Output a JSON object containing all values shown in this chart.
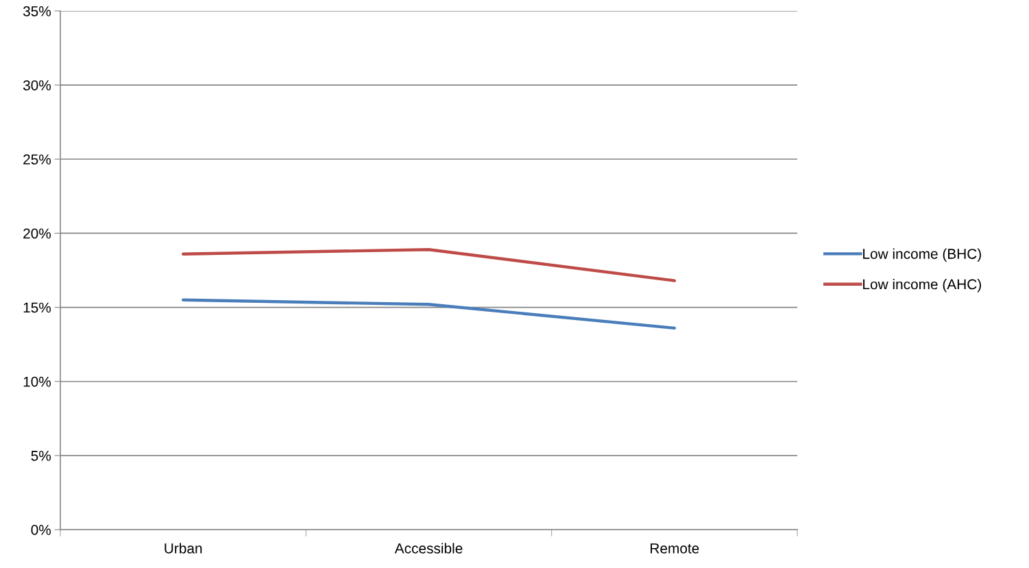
{
  "chart_data": {
    "type": "line",
    "categories": [
      "Urban",
      "Accessible",
      "Remote"
    ],
    "series": [
      {
        "name": "Low income (BHC)",
        "color": "#4a7ebb",
        "values": [
          15.5,
          15.2,
          13.6
        ]
      },
      {
        "name": "Low income (AHC)",
        "color": "#be4b48",
        "values": [
          18.6,
          18.9,
          16.8
        ]
      }
    ],
    "ylim": [
      0,
      35
    ],
    "yticks": [
      {
        "value": 0,
        "label": "0%"
      },
      {
        "value": 5,
        "label": "5%"
      },
      {
        "value": 10,
        "label": "10%"
      },
      {
        "value": 15,
        "label": "15%"
      },
      {
        "value": 20,
        "label": "20%"
      },
      {
        "value": 25,
        "label": "25%"
      },
      {
        "value": 30,
        "label": "30%"
      },
      {
        "value": 35,
        "label": "35%"
      }
    ],
    "grid": "y",
    "legend": "right",
    "marker": "none",
    "line_style": "solid"
  }
}
